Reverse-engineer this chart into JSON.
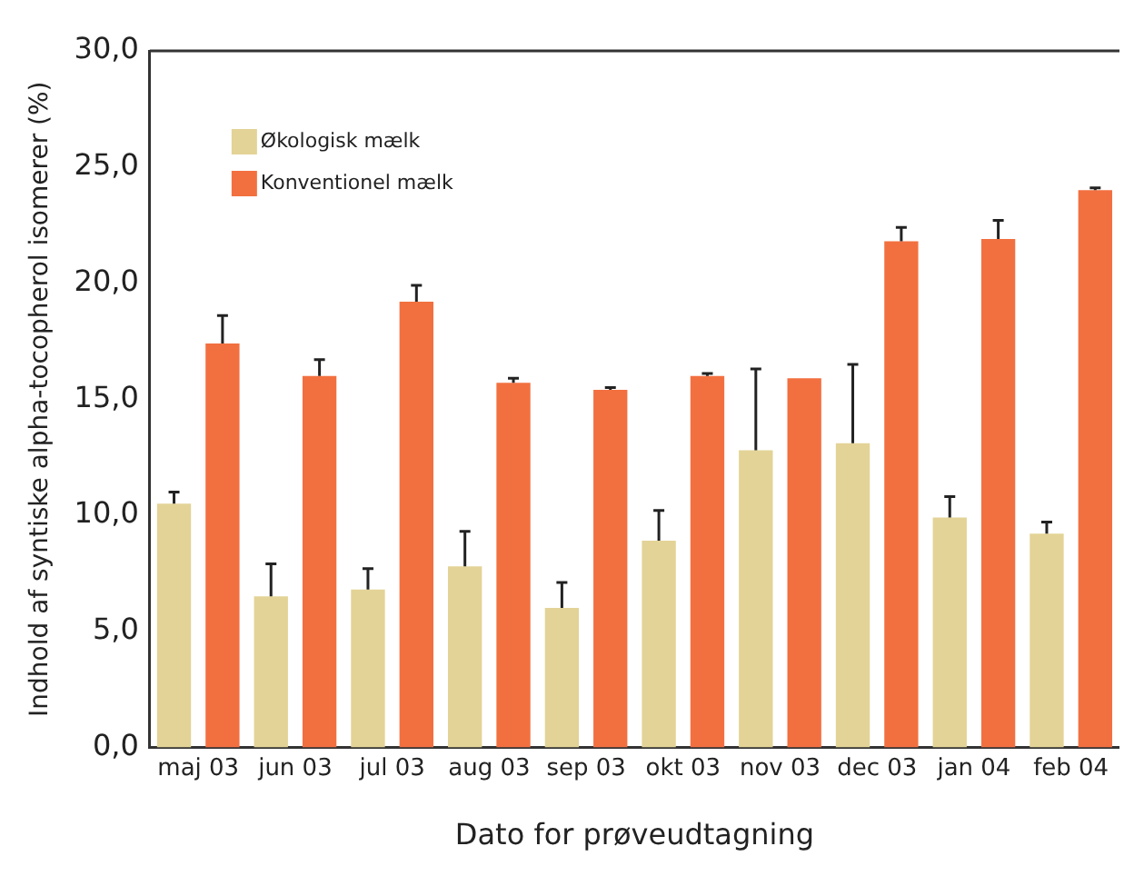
{
  "chart_data": {
    "type": "bar",
    "xlabel": "Dato for prøveudtagning",
    "ylabel": "Indhold af syntiske alpha-tocopherol isomerer (%)",
    "categories": [
      "maj 03",
      "jun 03",
      "jul 03",
      "aug 03",
      "sep 03",
      "okt 03",
      "nov 03",
      "dec 03",
      "jan 04",
      "feb 04"
    ],
    "series": [
      {
        "name": "Økologisk mælk",
        "color": "#e3d396",
        "values": [
          10.5,
          6.5,
          6.8,
          7.8,
          6.0,
          8.9,
          12.8,
          13.1,
          9.9,
          9.2
        ],
        "errors": [
          [
            10.5,
            11.0
          ],
          [
            6.5,
            7.9
          ],
          [
            6.8,
            7.7
          ],
          [
            7.8,
            9.3
          ],
          [
            6.0,
            7.1
          ],
          [
            8.9,
            10.2
          ],
          [
            12.8,
            16.3
          ],
          [
            13.1,
            16.5
          ],
          [
            9.9,
            10.8
          ],
          [
            9.2,
            9.7
          ]
        ]
      },
      {
        "name": "Konventionel mælk",
        "color": "#f27040",
        "values": [
          17.4,
          16.0,
          19.2,
          15.7,
          15.4,
          16.0,
          15.9,
          21.8,
          21.9,
          24.0
        ],
        "errors": [
          [
            17.4,
            18.6
          ],
          [
            16.0,
            16.7
          ],
          [
            19.2,
            19.9
          ],
          [
            15.7,
            15.9
          ],
          [
            15.4,
            15.5
          ],
          [
            16.0,
            16.1
          ],
          null,
          [
            21.8,
            22.4
          ],
          [
            21.9,
            22.7
          ],
          [
            24.0,
            24.1
          ]
        ]
      }
    ],
    "ylim": [
      0,
      30
    ],
    "yticks": [
      {
        "value": 0,
        "label": "0,0"
      },
      {
        "value": 5,
        "label": "5,0"
      },
      {
        "value": 10,
        "label": "10,0"
      },
      {
        "value": 15,
        "label": "15,0"
      },
      {
        "value": 20,
        "label": "20,0"
      },
      {
        "value": 25,
        "label": "25,0"
      },
      {
        "value": 30,
        "label": "30,0"
      }
    ],
    "grid": false,
    "legend": "top left"
  }
}
